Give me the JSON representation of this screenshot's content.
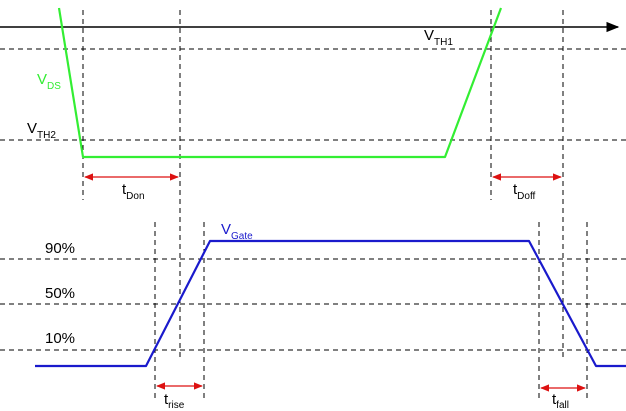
{
  "colors": {
    "vds_trace": "#33ee33",
    "vgate_trace": "#1a1acc",
    "interval_arrow": "#dd1111",
    "guide": "#000000"
  },
  "traces": {
    "vds": {
      "main": "V",
      "sub": "DS"
    },
    "vgate": {
      "main": "V",
      "sub": "Gate"
    }
  },
  "thresholds": {
    "vth1": {
      "main": "V",
      "sub": "TH1"
    },
    "vth2": {
      "main": "V",
      "sub": "TH2"
    }
  },
  "levels": {
    "p90": "90%",
    "p50": "50%",
    "p10": "10%"
  },
  "intervals": {
    "t_don": {
      "main": "t",
      "sub": "Don"
    },
    "t_doff": {
      "main": "t",
      "sub": "Doff"
    },
    "t_rise": {
      "main": "t",
      "sub": "rise"
    },
    "t_fall": {
      "main": "t",
      "sub": "fall"
    }
  }
}
